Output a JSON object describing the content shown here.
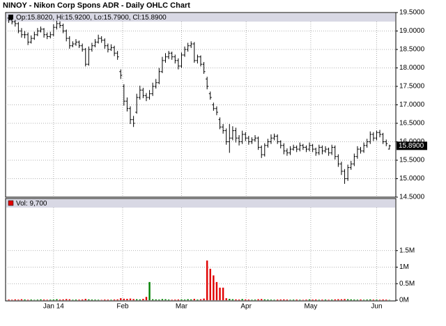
{
  "chart_data": {
    "type": "ohlc",
    "title": "NINOY - Nikon Corp Spons ADR - Daily OHLC Chart",
    "info": "Op:15.8020, Hi:15.9200, Lo:15.7900, Cl:15.8900",
    "volume_label": "Vol: 9,700",
    "last_label": "15.8900",
    "bar_color": "#000000",
    "up_color": "#008000",
    "down_color": "#e00000",
    "grid": true,
    "xlim": [
      -1,
      121
    ],
    "xticks": [
      {
        "value": 14,
        "label": "Jan 14"
      },
      {
        "value": 35.6,
        "label": "Feb"
      },
      {
        "value": 54,
        "label": "Mar"
      },
      {
        "value": 74.2,
        "label": "Apr"
      },
      {
        "value": 94.4,
        "label": "May"
      },
      {
        "value": 115,
        "label": "Jun"
      }
    ],
    "ylim": [
      14.5,
      19.5
    ],
    "yticks": [
      {
        "value": 14.5,
        "label": "14.5000"
      },
      {
        "value": 15,
        "label": "15.0000"
      },
      {
        "value": 15.5,
        "label": "15.5000"
      },
      {
        "value": 16,
        "label": "16.0000"
      },
      {
        "value": 16.5,
        "label": "16.5000"
      },
      {
        "value": 17,
        "label": "17.0000"
      },
      {
        "value": 17.5,
        "label": "17.5000"
      },
      {
        "value": 18,
        "label": "18.0000"
      },
      {
        "value": 18.5,
        "label": "18.5000"
      },
      {
        "value": 19,
        "label": "19.0000"
      },
      {
        "value": 19.5,
        "label": "19.5000"
      }
    ],
    "volume_ylim": [
      0,
      2800000
    ],
    "volume_yticks": [
      {
        "value": 0,
        "label": "0M"
      },
      {
        "value": 500000,
        "label": "0.5M"
      },
      {
        "value": 1000000,
        "label": "1M"
      },
      {
        "value": 1500000,
        "label": "1.5M"
      }
    ],
    "ohlc": [
      [
        19.35,
        19.42,
        19.22,
        19.3
      ],
      [
        19.3,
        19.36,
        19.18,
        19.25
      ],
      [
        19.25,
        19.3,
        19.12,
        19.2
      ],
      [
        19.2,
        19.24,
        18.94,
        19.0
      ],
      [
        19.0,
        19.08,
        18.82,
        18.9
      ],
      [
        18.9,
        19.0,
        18.8,
        18.9
      ],
      [
        18.9,
        18.96,
        18.62,
        18.7
      ],
      [
        18.7,
        18.88,
        18.66,
        18.8
      ],
      [
        18.8,
        18.98,
        18.76,
        18.9
      ],
      [
        18.9,
        19.08,
        18.86,
        19.0
      ],
      [
        19.0,
        19.12,
        18.96,
        19.05
      ],
      [
        19.05,
        19.08,
        18.82,
        18.9
      ],
      [
        18.9,
        18.96,
        18.78,
        18.85
      ],
      [
        18.85,
        18.98,
        18.8,
        18.9
      ],
      [
        18.9,
        19.18,
        18.86,
        19.1
      ],
      [
        19.1,
        19.28,
        19.04,
        19.2
      ],
      [
        19.2,
        19.26,
        19.08,
        19.15
      ],
      [
        19.15,
        19.2,
        18.94,
        19.0
      ],
      [
        19.0,
        19.04,
        18.72,
        18.8
      ],
      [
        18.8,
        18.86,
        18.52,
        18.6
      ],
      [
        18.6,
        18.72,
        18.56,
        18.65
      ],
      [
        18.65,
        18.78,
        18.6,
        18.7
      ],
      [
        18.7,
        18.74,
        18.54,
        18.6
      ],
      [
        18.6,
        18.66,
        18.44,
        18.5
      ],
      [
        18.5,
        18.54,
        18.04,
        18.1
      ],
      [
        18.1,
        18.58,
        18.06,
        18.5
      ],
      [
        18.5,
        18.68,
        18.44,
        18.6
      ],
      [
        18.6,
        18.78,
        18.56,
        18.7
      ],
      [
        18.7,
        18.9,
        18.66,
        18.8
      ],
      [
        18.8,
        18.86,
        18.68,
        18.75
      ],
      [
        18.75,
        18.8,
        18.52,
        18.6
      ],
      [
        18.6,
        18.66,
        18.42,
        18.5
      ],
      [
        18.5,
        18.64,
        18.46,
        18.55
      ],
      [
        18.55,
        18.6,
        18.32,
        18.4
      ],
      [
        18.4,
        18.46,
        18.22,
        18.3
      ],
      [
        17.9,
        17.96,
        17.7,
        17.8
      ],
      [
        17.5,
        17.56,
        16.98,
        17.1
      ],
      [
        17.1,
        17.2,
        16.82,
        16.9
      ],
      [
        16.9,
        16.96,
        16.48,
        16.6
      ],
      [
        16.6,
        16.7,
        16.4,
        16.5
      ],
      [
        16.8,
        17.3,
        16.76,
        17.2
      ],
      [
        17.2,
        17.52,
        17.14,
        17.4
      ],
      [
        17.4,
        17.46,
        17.18,
        17.25
      ],
      [
        17.25,
        17.32,
        17.1,
        17.2
      ],
      [
        17.2,
        17.4,
        17.14,
        17.3
      ],
      [
        17.3,
        17.6,
        17.24,
        17.5
      ],
      [
        17.5,
        17.7,
        17.44,
        17.6
      ],
      [
        17.6,
        18.0,
        17.56,
        17.9
      ],
      [
        17.9,
        18.3,
        17.86,
        18.2
      ],
      [
        18.2,
        18.4,
        18.14,
        18.3
      ],
      [
        18.3,
        18.46,
        18.24,
        18.4
      ],
      [
        18.4,
        18.44,
        18.22,
        18.3
      ],
      [
        18.3,
        18.36,
        18.12,
        18.2
      ],
      [
        18.2,
        18.26,
        17.96,
        18.05
      ],
      [
        18.05,
        18.42,
        18.0,
        18.35
      ],
      [
        18.35,
        18.58,
        18.3,
        18.5
      ],
      [
        18.5,
        18.68,
        18.44,
        18.6
      ],
      [
        18.6,
        18.72,
        18.54,
        18.65
      ],
      [
        18.65,
        18.7,
        18.14,
        18.2
      ],
      [
        18.2,
        18.36,
        18.12,
        18.3
      ],
      [
        18.3,
        18.34,
        18.04,
        18.1
      ],
      [
        18.1,
        18.16,
        17.84,
        17.9
      ],
      [
        17.7,
        17.76,
        17.42,
        17.5
      ],
      [
        17.3,
        17.36,
        17.14,
        17.2
      ],
      [
        17.0,
        17.06,
        16.84,
        16.9
      ],
      [
        16.9,
        16.96,
        16.72,
        16.8
      ],
      [
        16.6,
        16.66,
        16.34,
        16.4
      ],
      [
        16.4,
        16.48,
        16.22,
        16.3
      ],
      [
        16.3,
        16.36,
        15.92,
        16.0
      ],
      [
        16.0,
        16.48,
        15.7,
        16.1
      ],
      [
        16.1,
        16.42,
        16.04,
        16.3
      ],
      [
        16.3,
        16.38,
        15.98,
        16.1
      ],
      [
        16.1,
        16.18,
        15.9,
        16.0
      ],
      [
        16.0,
        16.3,
        15.94,
        16.2
      ],
      [
        16.2,
        16.26,
        16.02,
        16.1
      ],
      [
        16.1,
        16.16,
        15.92,
        16.0
      ],
      [
        16.0,
        16.12,
        15.94,
        16.05
      ],
      [
        16.05,
        16.18,
        16.0,
        16.1
      ],
      [
        16.1,
        16.14,
        15.78,
        15.85
      ],
      [
        15.85,
        15.9,
        15.56,
        15.65
      ],
      [
        15.65,
        15.96,
        15.6,
        15.9
      ],
      [
        15.9,
        16.08,
        15.84,
        16.0
      ],
      [
        16.0,
        16.2,
        15.94,
        16.1
      ],
      [
        16.1,
        16.22,
        16.04,
        16.15
      ],
      [
        16.15,
        16.2,
        15.94,
        16.0
      ],
      [
        16.0,
        16.04,
        15.82,
        15.9
      ],
      [
        15.9,
        15.96,
        15.66,
        15.75
      ],
      [
        15.75,
        15.82,
        15.62,
        15.7
      ],
      [
        15.7,
        15.88,
        15.64,
        15.8
      ],
      [
        15.8,
        15.92,
        15.76,
        15.85
      ],
      [
        15.85,
        15.9,
        15.72,
        15.8
      ],
      [
        15.8,
        15.98,
        15.74,
        15.9
      ],
      [
        15.9,
        15.94,
        15.78,
        15.85
      ],
      [
        15.85,
        15.9,
        15.72,
        15.8
      ],
      [
        15.8,
        15.98,
        15.74,
        15.9
      ],
      [
        15.9,
        15.94,
        15.72,
        15.8
      ],
      [
        15.8,
        15.84,
        15.62,
        15.7
      ],
      [
        15.7,
        15.92,
        15.64,
        15.85
      ],
      [
        15.85,
        15.9,
        15.66,
        15.75
      ],
      [
        15.75,
        15.88,
        15.7,
        15.8
      ],
      [
        15.8,
        15.84,
        15.62,
        15.7
      ],
      [
        15.7,
        15.92,
        15.64,
        15.85
      ],
      [
        15.85,
        15.9,
        15.52,
        15.6
      ],
      [
        15.6,
        15.66,
        15.32,
        15.4
      ],
      [
        15.4,
        15.46,
        15.1,
        15.2
      ],
      [
        15.2,
        15.26,
        14.86,
        15.0
      ],
      [
        15.0,
        15.38,
        14.94,
        15.3
      ],
      [
        15.3,
        15.48,
        15.24,
        15.4
      ],
      [
        15.4,
        15.68,
        15.34,
        15.6
      ],
      [
        15.6,
        15.88,
        15.54,
        15.8
      ],
      [
        15.8,
        15.86,
        15.68,
        15.75
      ],
      [
        15.75,
        15.98,
        15.7,
        15.9
      ],
      [
        15.9,
        16.08,
        15.84,
        16.0
      ],
      [
        16.0,
        16.28,
        15.94,
        16.2
      ],
      [
        16.2,
        16.26,
        16.02,
        16.1
      ],
      [
        16.1,
        16.3,
        16.04,
        16.25
      ],
      [
        16.25,
        16.32,
        16.12,
        16.2
      ],
      [
        16.2,
        16.24,
        15.94,
        16.0
      ],
      [
        16.0,
        16.06,
        15.88,
        15.95
      ],
      [
        15.802,
        15.92,
        15.79,
        15.89
      ]
    ],
    "volume": [
      20000,
      15000,
      25000,
      18000,
      30000,
      22000,
      15000,
      20000,
      12000,
      18000,
      25000,
      20000,
      15000,
      18000,
      22000,
      30000,
      20000,
      25000,
      35000,
      28000,
      15000,
      20000,
      18000,
      22000,
      40000,
      25000,
      20000,
      18000,
      15000,
      12000,
      20000,
      18000,
      15000,
      22000,
      25000,
      60000,
      45000,
      40000,
      50000,
      35000,
      30000,
      25000,
      40000,
      100000,
      550000,
      30000,
      25000,
      20000,
      35000,
      30000,
      20000,
      15000,
      18000,
      22000,
      25000,
      20000,
      30000,
      25000,
      40000,
      20000,
      30000,
      50000,
      1200000,
      950000,
      750000,
      550000,
      380000,
      380000,
      60000,
      40000,
      30000,
      25000,
      20000,
      35000,
      25000,
      20000,
      15000,
      18000,
      30000,
      35000,
      25000,
      20000,
      18000,
      15000,
      20000,
      22000,
      25000,
      20000,
      15000,
      18000,
      20000,
      15000,
      12000,
      18000,
      25000,
      20000,
      22000,
      15000,
      18000,
      20000,
      15000,
      18000,
      25000,
      30000,
      28000,
      35000,
      30000,
      25000,
      20000,
      18000,
      22000,
      15000,
      20000,
      25000,
      18000,
      20000,
      15000,
      22000,
      18000,
      9700
    ]
  }
}
